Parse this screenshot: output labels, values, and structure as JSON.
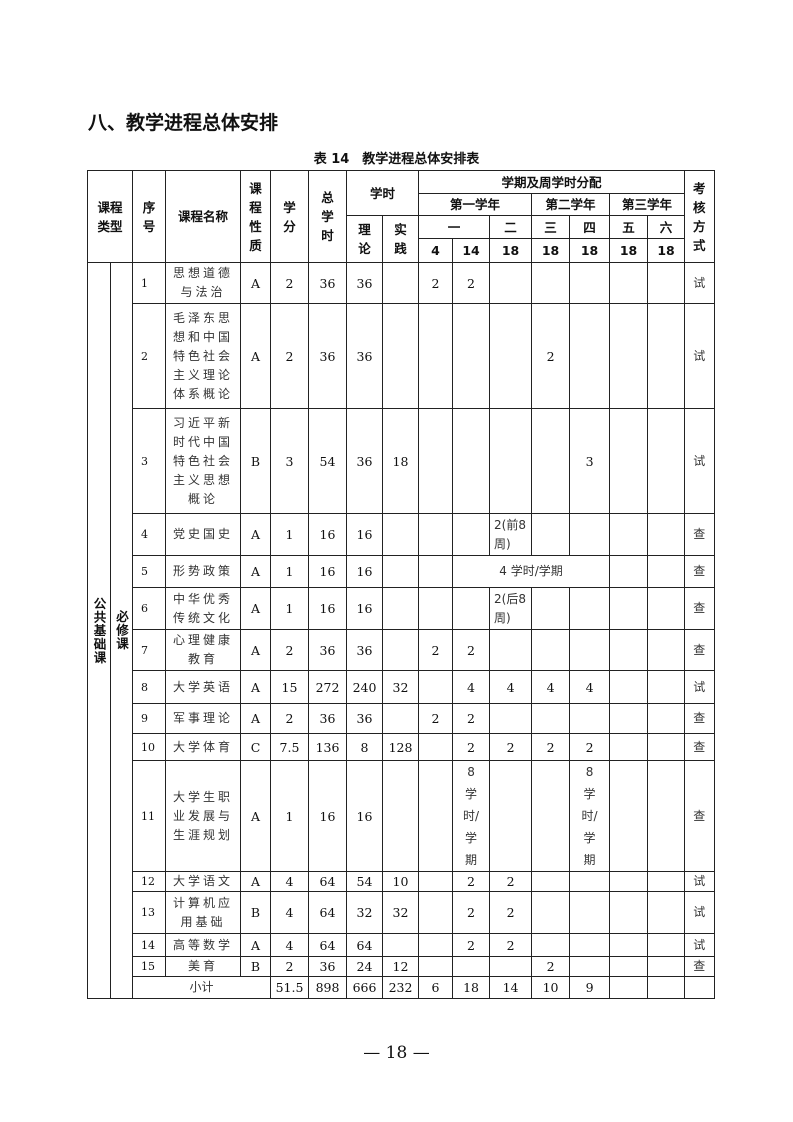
{
  "section_title": "八、教学进程总体安排",
  "table_caption": "表 14　教学进程总体安排表",
  "header": {
    "type": "课程类型",
    "seq": "序号",
    "name": "课程名称",
    "nature": "课程性质",
    "credit": "学分",
    "total": "总学时",
    "hours": "学时",
    "theory": "理论",
    "practice": "实践",
    "dist": "学期及周学时分配",
    "year1": "第一学年",
    "year2": "第二学年",
    "year3": "第三学年",
    "s1": "一",
    "s2": "二",
    "s3": "三",
    "s4": "四",
    "s5": "五",
    "s6": "六",
    "w1a": "4",
    "w1b": "14",
    "w2": "18",
    "w3": "18",
    "w4": "18",
    "w5": "18",
    "w6": "18",
    "exam": "考核方式"
  },
  "group": {
    "category": "公共基础课",
    "subtype": "必修课"
  },
  "rows": [
    {
      "seq": "1",
      "name": "思想道德与法治",
      "nature": "A",
      "credit": "2",
      "total": "36",
      "theory": "36",
      "practice": "",
      "s1a": "2",
      "s1b": "2",
      "s2": "",
      "s3": "",
      "s4": "",
      "s5": "",
      "s6": "",
      "exam": "试"
    },
    {
      "seq": "2",
      "name": "毛泽东思想和中国特色社会主义理论体系概论",
      "nature": "A",
      "credit": "2",
      "total": "36",
      "theory": "36",
      "practice": "",
      "s1a": "",
      "s1b": "",
      "s2": "",
      "s3": "2",
      "s4": "",
      "s5": "",
      "s6": "",
      "exam": "试"
    },
    {
      "seq": "3",
      "name": "习近平新时代中国特色社会主义思想概论",
      "nature": "B",
      "credit": "3",
      "total": "54",
      "theory": "36",
      "practice": "18",
      "s1a": "",
      "s1b": "",
      "s2": "",
      "s3": "",
      "s4": "3",
      "s5": "",
      "s6": "",
      "exam": "试"
    },
    {
      "seq": "4",
      "name": "党史国史",
      "nature": "A",
      "credit": "1",
      "total": "16",
      "theory": "16",
      "practice": "",
      "s1a": "",
      "s1b": "",
      "s2": "2(前8周)",
      "s3": "",
      "s4": "",
      "s5": "",
      "s6": "",
      "exam": "查"
    },
    {
      "seq": "5",
      "name": "形势政策",
      "nature": "A",
      "credit": "1",
      "total": "16",
      "theory": "16",
      "practice": "",
      "s1a": "",
      "span": "4 学时/学期",
      "s5": "",
      "s6": "",
      "exam": "查"
    },
    {
      "seq": "6",
      "name": "中华优秀传统文化",
      "nature": "A",
      "credit": "1",
      "total": "16",
      "theory": "16",
      "practice": "",
      "s1a": "",
      "s1b": "",
      "s2": "2(后8周)",
      "s3": "",
      "s4": "",
      "s5": "",
      "s6": "",
      "exam": "查"
    },
    {
      "seq": "7",
      "name": "心理健康教育",
      "nature": "A",
      "credit": "2",
      "total": "36",
      "theory": "36",
      "practice": "",
      "s1a": "2",
      "s1b": "2",
      "s2": "",
      "s3": "",
      "s4": "",
      "s5": "",
      "s6": "",
      "exam": "查"
    },
    {
      "seq": "8",
      "name": "大学英语",
      "nature": "A",
      "credit": "15",
      "total": "272",
      "theory": "240",
      "practice": "32",
      "s1a": "",
      "s1b": "4",
      "s2": "4",
      "s3": "4",
      "s4": "4",
      "s5": "",
      "s6": "",
      "exam": "试"
    },
    {
      "seq": "9",
      "name": "军事理论",
      "nature": "A",
      "credit": "2",
      "total": "36",
      "theory": "36",
      "practice": "",
      "s1a": "2",
      "s1b": "2",
      "s2": "",
      "s3": "",
      "s4": "",
      "s5": "",
      "s6": "",
      "exam": "查"
    },
    {
      "seq": "10",
      "name": "大学体育",
      "nature": "C",
      "credit": "7.5",
      "total": "136",
      "theory": "8",
      "practice": "128",
      "s1a": "",
      "s1b": "2",
      "s2": "2",
      "s3": "2",
      "s4": "2",
      "s5": "",
      "s6": "",
      "exam": "查"
    },
    {
      "seq": "11",
      "name": "大学生职业发展与生涯规划",
      "nature": "A",
      "credit": "1",
      "total": "16",
      "theory": "16",
      "practice": "",
      "s1a": "",
      "s1b": "8学时/学期",
      "s2": "",
      "s3": "",
      "s4": "8学时/学期",
      "s5": "",
      "s6": "",
      "exam": "查"
    },
    {
      "seq": "12",
      "name": "大学语文",
      "nature": "A",
      "credit": "4",
      "total": "64",
      "theory": "54",
      "practice": "10",
      "s1a": "",
      "s1b": "2",
      "s2": "2",
      "s3": "",
      "s4": "",
      "s5": "",
      "s6": "",
      "exam": "试"
    },
    {
      "seq": "13",
      "name": "计算机应用基础",
      "nature": "B",
      "credit": "4",
      "total": "64",
      "theory": "32",
      "practice": "32",
      "s1a": "",
      "s1b": "2",
      "s2": "2",
      "s3": "",
      "s4": "",
      "s5": "",
      "s6": "",
      "exam": "试"
    },
    {
      "seq": "14",
      "name": "高等数学",
      "nature": "A",
      "credit": "4",
      "total": "64",
      "theory": "64",
      "practice": "",
      "s1a": "",
      "s1b": "2",
      "s2": "2",
      "s3": "",
      "s4": "",
      "s5": "",
      "s6": "",
      "exam": "试"
    },
    {
      "seq": "15",
      "name": "美育",
      "nature": "B",
      "credit": "2",
      "total": "36",
      "theory": "24",
      "practice": "12",
      "s1a": "",
      "s1b": "",
      "s2": "",
      "s3": "2",
      "s4": "",
      "s5": "",
      "s6": "",
      "exam": "查"
    }
  ],
  "subtotal": {
    "label": "小计",
    "credit": "51.5",
    "total": "898",
    "theory": "666",
    "practice": "232",
    "s1a": "6",
    "s1b": "18",
    "s2": "14",
    "s3": "10",
    "s4": "9",
    "s5": "",
    "s6": "",
    "exam": ""
  },
  "page_number": "— 18 —"
}
